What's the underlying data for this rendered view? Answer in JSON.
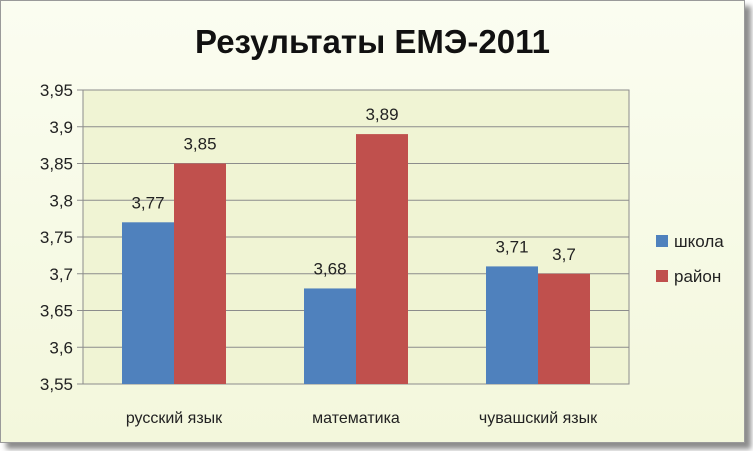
{
  "chart_data": {
    "type": "bar",
    "title": "Результаты ЕМЭ-2011",
    "categories": [
      "русский язык",
      "математика",
      "чувашский язык"
    ],
    "series": [
      {
        "name": "школа",
        "values": [
          3.77,
          3.68,
          3.71
        ],
        "labels": [
          "3,77",
          "3,68",
          "3,71"
        ],
        "color": "#4f81bd"
      },
      {
        "name": "район",
        "values": [
          3.85,
          3.89,
          3.7
        ],
        "labels": [
          "3,85",
          "3,89",
          "3,7"
        ],
        "color": "#c0504d"
      }
    ],
    "ylim": [
      3.55,
      3.95
    ],
    "yticks": [
      {
        "value": 3.55,
        "label": "3,55"
      },
      {
        "value": 3.6,
        "label": "3,6"
      },
      {
        "value": 3.65,
        "label": "3,65"
      },
      {
        "value": 3.7,
        "label": "3,7"
      },
      {
        "value": 3.75,
        "label": "3,75"
      },
      {
        "value": 3.8,
        "label": "3,8"
      },
      {
        "value": 3.85,
        "label": "3,85"
      },
      {
        "value": 3.9,
        "label": "3,9"
      },
      {
        "value": 3.95,
        "label": "3,95"
      }
    ],
    "grid": true,
    "legend": "right",
    "plot_background": "#f0f4d4"
  }
}
